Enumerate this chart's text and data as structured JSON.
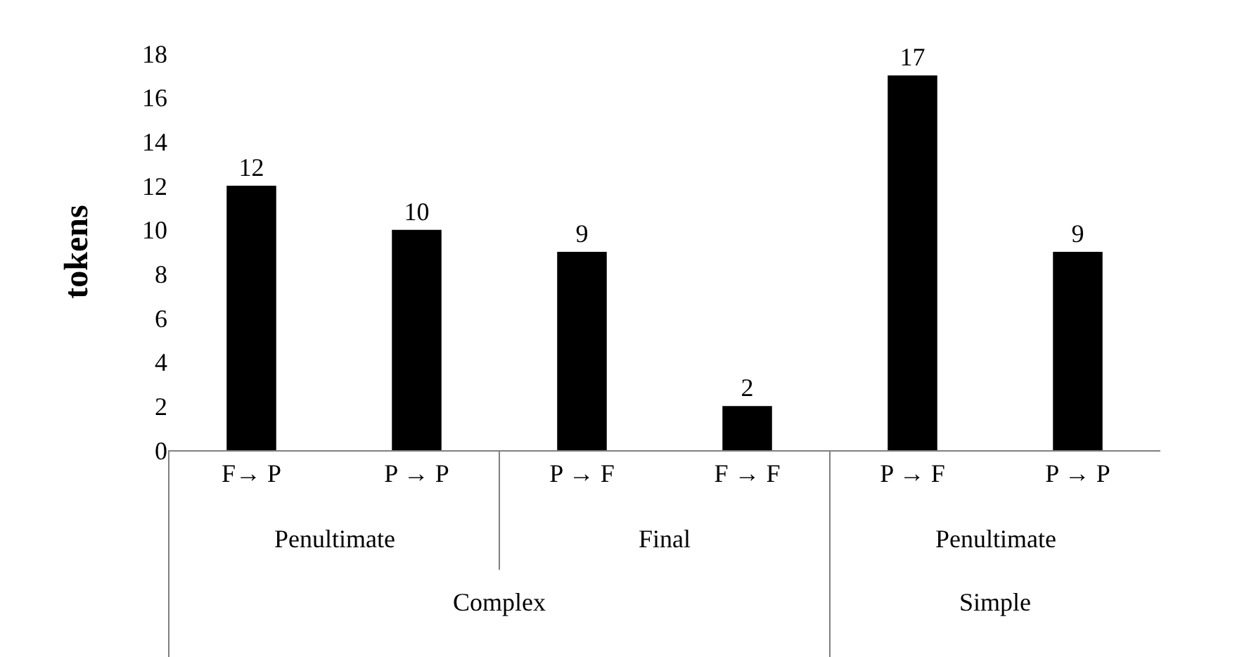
{
  "chart_data": {
    "type": "bar",
    "ylabel": "tokens",
    "categories": [
      "F→ P",
      "P → P",
      "P → F",
      "F → F",
      "P → F",
      "P → P"
    ],
    "values": [
      12,
      10,
      9,
      2,
      17,
      9
    ],
    "color": "#000000",
    "ylim": [
      0,
      18
    ],
    "yticks": [
      0,
      2,
      4,
      6,
      8,
      10,
      12,
      14,
      16,
      18
    ],
    "grid": false,
    "data_labels": true,
    "annotations": [
      "Penultimate",
      "Final",
      "Penultimate",
      "Complex",
      "Simple"
    ]
  }
}
